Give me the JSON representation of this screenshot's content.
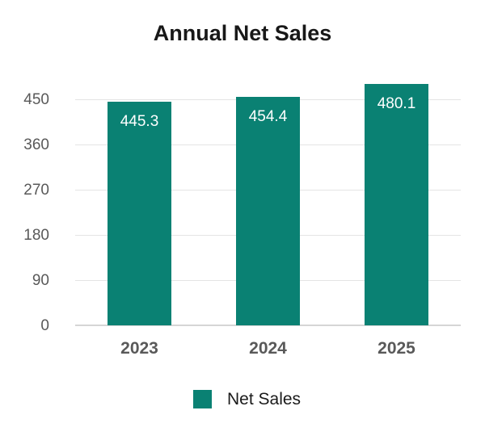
{
  "title": "Annual Net Sales",
  "legend": {
    "items": [
      {
        "label": "Net Sales",
        "color": "#0a8173"
      }
    ],
    "position": "bottom"
  },
  "colors": {
    "bar": "#0a8173",
    "axis_text": "#595959",
    "gridline": "#e4e4e4",
    "baseline": "#d5d5d5",
    "title_text": "#181818",
    "bar_value_text": "#ffffff"
  },
  "chart_data": {
    "type": "bar",
    "title": "Annual Net Sales",
    "categories": [
      "2023",
      "2024",
      "2025"
    ],
    "series": [
      {
        "name": "Net Sales",
        "values": [
          445.3,
          454.4,
          480.1
        ]
      }
    ],
    "data_labels": [
      "445.3",
      "454.4",
      "480.1"
    ],
    "xlabel": "",
    "ylabel": "",
    "yticks": [
      0,
      90,
      180,
      270,
      360,
      450
    ],
    "ylim": [
      0,
      485
    ],
    "grid": true,
    "legend_position": "bottom"
  }
}
